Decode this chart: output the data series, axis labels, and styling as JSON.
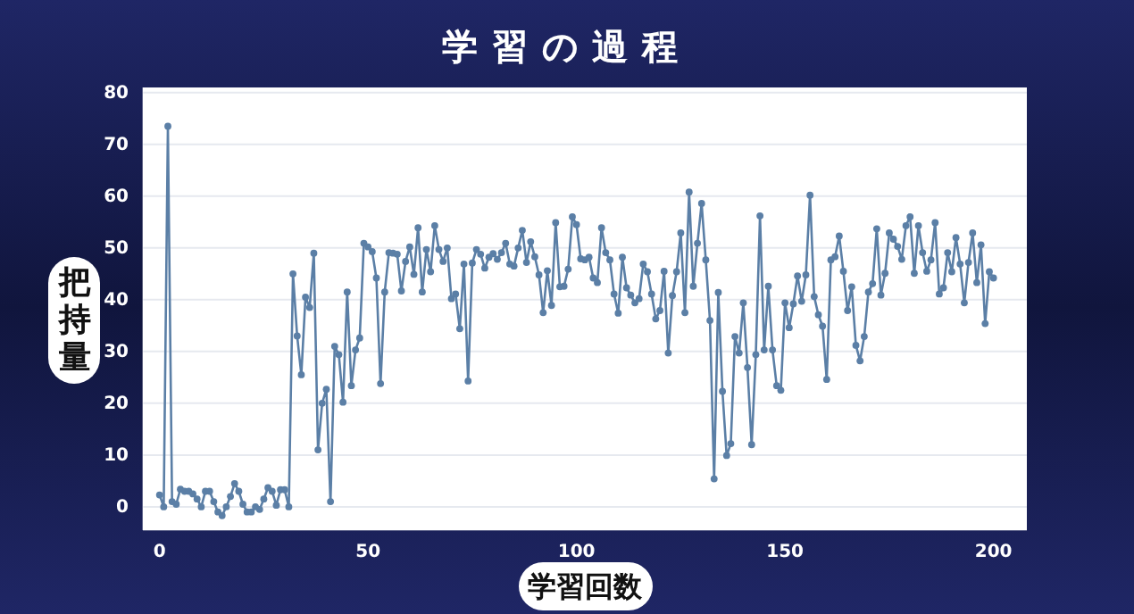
{
  "chart_data": {
    "type": "line",
    "title": "学習の過程",
    "xlabel": "学習回数",
    "ylabel": "把持量",
    "x": [
      0,
      1,
      2,
      3,
      4,
      5,
      6,
      7,
      8,
      9,
      10,
      11,
      12,
      13,
      14,
      15,
      16,
      17,
      18,
      19,
      20,
      21,
      22,
      23,
      24,
      25,
      26,
      27,
      28,
      29,
      30,
      31,
      32,
      33,
      34,
      35,
      36,
      37,
      38,
      39,
      40,
      41,
      42,
      43,
      44,
      45,
      46,
      47,
      48,
      49,
      50,
      51,
      52,
      53,
      54,
      55,
      56,
      57,
      58,
      59,
      60,
      61,
      62,
      63,
      64,
      65,
      66,
      67,
      68,
      69,
      70,
      71,
      72,
      73,
      74,
      75,
      76,
      77,
      78,
      79,
      80,
      81,
      82,
      83,
      84,
      85,
      86,
      87,
      88,
      89,
      90,
      91,
      92,
      93,
      94,
      95,
      96,
      97,
      98,
      99,
      100,
      101,
      102,
      103,
      104,
      105,
      106,
      107,
      108,
      109,
      110,
      111,
      112,
      113,
      114,
      115,
      116,
      117,
      118,
      119,
      120,
      121,
      122,
      123,
      124,
      125,
      126,
      127,
      128,
      129,
      130,
      131,
      132,
      133,
      134,
      135,
      136,
      137,
      138,
      139,
      140,
      141,
      142,
      143,
      144,
      145,
      146,
      147,
      148,
      149,
      150,
      151,
      152,
      153,
      154,
      155,
      156,
      157,
      158,
      159,
      160,
      161,
      162,
      163,
      164,
      165,
      166,
      167,
      168,
      169,
      170,
      171,
      172,
      173,
      174,
      175,
      176,
      177,
      178,
      179,
      180,
      181,
      182,
      183,
      184,
      185,
      186,
      187,
      188,
      189,
      190,
      191,
      192,
      193,
      194,
      195,
      196,
      197,
      198,
      199,
      200
    ],
    "series": [
      {
        "color": "#5b7fa6",
        "values": [
          2.3,
          0,
          73.5,
          1,
          0.5,
          3.4,
          3,
          3,
          2.5,
          1.5,
          0,
          3,
          3,
          1,
          -1,
          -1.7,
          0,
          2,
          4.5,
          3,
          0.5,
          -1,
          -1,
          0,
          -0.5,
          1.5,
          3.7,
          3,
          0.3,
          3.3,
          3.3,
          0,
          45,
          33,
          25.5,
          40.5,
          38.5,
          49,
          11,
          20,
          22.7,
          1,
          31,
          29.4,
          20.2,
          41.5,
          23.4,
          30.3,
          32.6,
          50.9,
          50.2,
          49.3,
          44.2,
          23.8,
          41.5,
          49.1,
          49,
          48.8,
          41.7,
          47.4,
          50.2,
          44.9,
          53.9,
          41.5,
          49.7,
          45.4,
          54.3,
          49.7,
          47.4,
          50,
          40.2,
          41.1,
          34.4,
          46.9,
          24.3,
          47.1,
          49.7,
          48.8,
          46.1,
          48.2,
          48.9,
          47.8,
          49.1,
          50.9,
          46.9,
          46.5,
          50,
          53.4,
          47.2,
          51.2,
          48.3,
          44.8,
          37.5,
          45.6,
          38.9,
          54.9,
          42.5,
          42.6,
          45.9,
          56,
          54.5,
          47.9,
          47.7,
          48.2,
          44.2,
          43.3,
          53.9,
          49.1,
          47.7,
          41.1,
          37.4,
          48.2,
          42.3,
          40.9,
          39.4,
          40.2,
          46.9,
          45.4,
          41.1,
          36.3,
          37.9,
          45.5,
          29.7,
          40.8,
          45.4,
          52.9,
          37.5,
          60.8,
          42.6,
          50.9,
          58.6,
          47.7,
          36,
          5.4,
          41.4,
          22.3,
          9.9,
          12.2,
          32.9,
          29.7,
          39.4,
          26.9,
          12,
          29.4,
          56.2,
          30.3,
          42.6,
          30.3,
          23.4,
          22.5,
          39.4,
          34.6,
          39.2,
          44.6,
          39.7,
          44.8,
          60.2,
          40.6,
          37.1,
          34.9,
          24.6,
          47.7,
          48.3,
          52.3,
          45.5,
          37.9,
          42.5,
          31.2,
          28.2,
          32.9,
          41.5,
          43.1,
          53.7,
          40.9,
          45.1,
          52.9,
          51.7,
          50.3,
          47.8,
          54.3,
          56,
          45.1,
          54.3,
          49.1,
          45.5,
          47.7,
          54.9,
          41.1,
          42.3,
          49.1,
          45.4,
          52,
          46.9,
          39.4,
          47.2,
          52.9,
          43.3,
          50.6,
          35.4,
          45.4,
          44.2
        ]
      }
    ],
    "xlim": [
      -4,
      208
    ],
    "xticks": [
      0,
      50,
      100,
      150,
      200
    ],
    "ylim": [
      -4.5,
      81
    ],
    "yticks": [
      0,
      10,
      20,
      30,
      40,
      50,
      60,
      70,
      80
    ],
    "grid": "y",
    "marker": "circle",
    "line_style": "solid"
  }
}
